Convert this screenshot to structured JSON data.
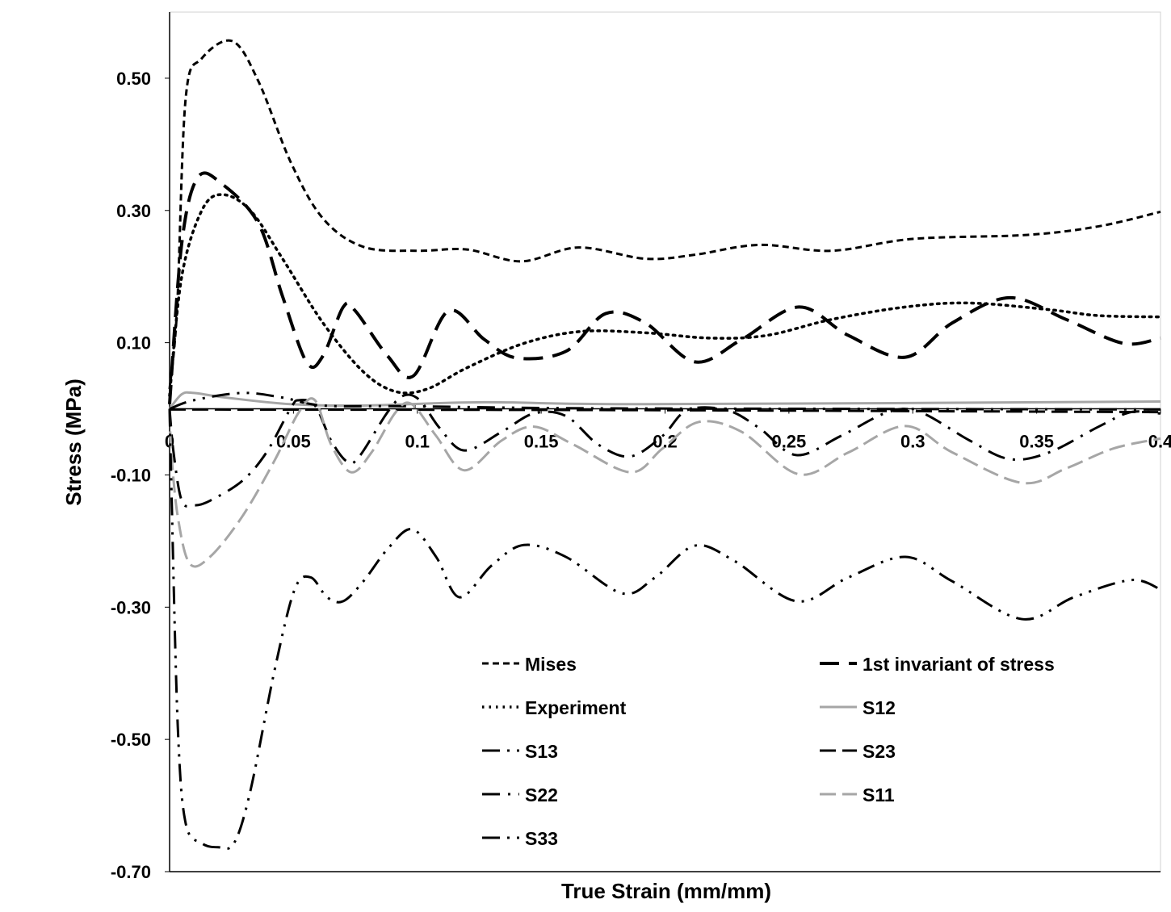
{
  "chart_data": {
    "type": "line",
    "title": "",
    "xlabel": "True Strain (mm/mm)",
    "ylabel": "Stress (MPa)",
    "xlim": [
      0,
      0.4
    ],
    "ylim": [
      -0.7,
      0.6
    ],
    "xticks": [
      0,
      0.05,
      0.1,
      0.15,
      0.2,
      0.25,
      0.3,
      0.35,
      0.4
    ],
    "xtick_labels": [
      "0",
      "0.05",
      "0.1",
      "0.15",
      "0.2",
      "0.25",
      "0.3",
      "0.35",
      "0.4"
    ],
    "yticks": [
      0.5,
      0.3,
      0.1,
      -0.1,
      -0.3,
      -0.5,
      -0.7
    ],
    "ytick_labels": [
      "0.50",
      "0.30",
      "0.10",
      "-0.10",
      "-0.30",
      "-0.50",
      "-0.70"
    ],
    "grid": false,
    "legend_placement": "bottom-right inside",
    "series": [
      {
        "name": "Mises",
        "color": "#000000",
        "style": "dashed",
        "points": [
          [
            0,
            0.03
          ],
          [
            0.003,
            0.15
          ],
          [
            0.0065,
            0.47
          ],
          [
            0.013,
            0.53
          ],
          [
            0.0254,
            0.556
          ],
          [
            0.0359,
            0.495
          ],
          [
            0.0489,
            0.373
          ],
          [
            0.0619,
            0.288
          ],
          [
            0.0782,
            0.245
          ],
          [
            0.0998,
            0.239
          ],
          [
            0.12,
            0.241
          ],
          [
            0.142,
            0.223
          ],
          [
            0.165,
            0.244
          ],
          [
            0.192,
            0.227
          ],
          [
            0.212,
            0.233
          ],
          [
            0.238,
            0.248
          ],
          [
            0.267,
            0.239
          ],
          [
            0.3,
            0.257
          ],
          [
            0.346,
            0.263
          ],
          [
            0.375,
            0.276
          ],
          [
            0.4,
            0.298
          ]
        ]
      },
      {
        "name": "1st invariant of stress",
        "color": "#000000",
        "style": "longdash",
        "points": [
          [
            0,
            0.007
          ],
          [
            0.0049,
            0.25
          ],
          [
            0.0114,
            0.35
          ],
          [
            0.0212,
            0.34
          ],
          [
            0.0359,
            0.28
          ],
          [
            0.0456,
            0.17
          ],
          [
            0.0554,
            0.07
          ],
          [
            0.0619,
            0.08
          ],
          [
            0.0701,
            0.154
          ],
          [
            0.075,
            0.148
          ],
          [
            0.088,
            0.08
          ],
          [
            0.0985,
            0.05
          ],
          [
            0.1125,
            0.148
          ],
          [
            0.127,
            0.105
          ],
          [
            0.14,
            0.077
          ],
          [
            0.16,
            0.087
          ],
          [
            0.176,
            0.144
          ],
          [
            0.192,
            0.13
          ],
          [
            0.212,
            0.071
          ],
          [
            0.231,
            0.105
          ],
          [
            0.254,
            0.154
          ],
          [
            0.274,
            0.111
          ],
          [
            0.297,
            0.078
          ],
          [
            0.316,
            0.13
          ],
          [
            0.339,
            0.168
          ],
          [
            0.362,
            0.135
          ],
          [
            0.385,
            0.099
          ],
          [
            0.4,
            0.107
          ]
        ]
      },
      {
        "name": "Experiment",
        "color": "#000000",
        "style": "dotted",
        "points": [
          [
            0,
            0.02
          ],
          [
            0.0049,
            0.2
          ],
          [
            0.013,
            0.3
          ],
          [
            0.0212,
            0.324
          ],
          [
            0.0326,
            0.3
          ],
          [
            0.0456,
            0.227
          ],
          [
            0.0619,
            0.13
          ],
          [
            0.0782,
            0.056
          ],
          [
            0.0913,
            0.026
          ],
          [
            0.104,
            0.03
          ],
          [
            0.12,
            0.062
          ],
          [
            0.143,
            0.099
          ],
          [
            0.166,
            0.117
          ],
          [
            0.192,
            0.115
          ],
          [
            0.218,
            0.107
          ],
          [
            0.241,
            0.111
          ],
          [
            0.267,
            0.135
          ],
          [
            0.297,
            0.154
          ],
          [
            0.323,
            0.16
          ],
          [
            0.355,
            0.15
          ],
          [
            0.375,
            0.141
          ],
          [
            0.4,
            0.139
          ]
        ]
      },
      {
        "name": "S12",
        "color": "#a6a6a6",
        "style": "solid",
        "points": [
          [
            0,
            0
          ],
          [
            0.0049,
            0.022
          ],
          [
            0.0098,
            0.024
          ],
          [
            0.0228,
            0.017
          ],
          [
            0.0489,
            0.007
          ],
          [
            0.0782,
            0.005
          ],
          [
            0.127,
            0.01
          ],
          [
            0.192,
            0.007
          ],
          [
            0.4,
            0.011
          ]
        ]
      },
      {
        "name": "S13",
        "color": "#000000",
        "style": "dashdotdot",
        "points": [
          [
            0,
            0
          ],
          [
            0.0098,
            0.013
          ],
          [
            0.0293,
            0.024
          ],
          [
            0.0456,
            0.017
          ],
          [
            0.0619,
            0.005
          ],
          [
            0.0945,
            0.004
          ],
          [
            0.16,
            0.001
          ],
          [
            0.258,
            0
          ],
          [
            0.4,
            -0.001
          ]
        ]
      },
      {
        "name": "S23",
        "color": "#000000",
        "style": "dash",
        "points": [
          [
            0,
            -0.001
          ],
          [
            0.192,
            -0.002
          ],
          [
            0.4,
            -0.005
          ]
        ]
      },
      {
        "name": "S22",
        "color": "#000000",
        "style": "dashdot",
        "points": [
          [
            0,
            0
          ],
          [
            0.0016,
            -0.066
          ],
          [
            0.0049,
            -0.139
          ],
          [
            0.0098,
            -0.146
          ],
          [
            0.0163,
            -0.139
          ],
          [
            0.0293,
            -0.109
          ],
          [
            0.0391,
            -0.066
          ],
          [
            0.0489,
            0.001
          ],
          [
            0.0522,
            0.013
          ],
          [
            0.0587,
            0.005
          ],
          [
            0.0652,
            -0.048
          ],
          [
            0.0717,
            -0.08
          ],
          [
            0.0766,
            -0.072
          ],
          [
            0.088,
            -0.005
          ],
          [
            0.0945,
            0.02
          ],
          [
            0.101,
            0.013
          ],
          [
            0.109,
            -0.029
          ],
          [
            0.119,
            -0.063
          ],
          [
            0.134,
            -0.035
          ],
          [
            0.147,
            -0.007
          ],
          [
            0.16,
            -0.011
          ],
          [
            0.173,
            -0.054
          ],
          [
            0.186,
            -0.072
          ],
          [
            0.199,
            -0.041
          ],
          [
            0.209,
            -0.002
          ],
          [
            0.225,
            -0.002
          ],
          [
            0.238,
            -0.029
          ],
          [
            0.253,
            -0.07
          ],
          [
            0.271,
            -0.041
          ],
          [
            0.29,
            -0.005
          ],
          [
            0.303,
            -0.005
          ],
          [
            0.323,
            -0.048
          ],
          [
            0.339,
            -0.076
          ],
          [
            0.355,
            -0.066
          ],
          [
            0.375,
            -0.027
          ],
          [
            0.388,
            -0.005
          ],
          [
            0.4,
            -0.007
          ]
        ]
      },
      {
        "name": "S11",
        "color": "#a6a6a6",
        "style": "dash",
        "points": [
          [
            0,
            0
          ],
          [
            0.0007,
            -0.066
          ],
          [
            0.0033,
            -0.163
          ],
          [
            0.0081,
            -0.234
          ],
          [
            0.0163,
            -0.224
          ],
          [
            0.0293,
            -0.163
          ],
          [
            0.0424,
            -0.078
          ],
          [
            0.0522,
            -0.005
          ],
          [
            0.0587,
            0.013
          ],
          [
            0.0652,
            -0.054
          ],
          [
            0.0733,
            -0.096
          ],
          [
            0.0815,
            -0.066
          ],
          [
            0.0913,
            -0.005
          ],
          [
            0.0978,
            0.007
          ],
          [
            0.1076,
            -0.041
          ],
          [
            0.119,
            -0.093
          ],
          [
            0.134,
            -0.048
          ],
          [
            0.147,
            -0.027
          ],
          [
            0.163,
            -0.054
          ],
          [
            0.186,
            -0.096
          ],
          [
            0.199,
            -0.06
          ],
          [
            0.2135,
            -0.02
          ],
          [
            0.231,
            -0.035
          ],
          [
            0.254,
            -0.099
          ],
          [
            0.274,
            -0.066
          ],
          [
            0.297,
            -0.026
          ],
          [
            0.316,
            -0.066
          ],
          [
            0.344,
            -0.112
          ],
          [
            0.362,
            -0.09
          ],
          [
            0.381,
            -0.06
          ],
          [
            0.4,
            -0.045
          ]
        ]
      },
      {
        "name": "S33",
        "color": "#000000",
        "style": "dashdotdot",
        "points": [
          [
            0,
            0
          ],
          [
            0.0007,
            -0.115
          ],
          [
            0.0033,
            -0.48
          ],
          [
            0.0065,
            -0.627
          ],
          [
            0.013,
            -0.657
          ],
          [
            0.0196,
            -0.663
          ],
          [
            0.026,
            -0.657
          ],
          [
            0.0326,
            -0.578
          ],
          [
            0.0424,
            -0.395
          ],
          [
            0.0505,
            -0.273
          ],
          [
            0.057,
            -0.255
          ],
          [
            0.0636,
            -0.285
          ],
          [
            0.0701,
            -0.291
          ],
          [
            0.0782,
            -0.261
          ],
          [
            0.088,
            -0.212
          ],
          [
            0.0978,
            -0.182
          ],
          [
            0.1076,
            -0.224
          ],
          [
            0.117,
            -0.285
          ],
          [
            0.13,
            -0.237
          ],
          [
            0.143,
            -0.206
          ],
          [
            0.16,
            -0.224
          ],
          [
            0.1826,
            -0.279
          ],
          [
            0.196,
            -0.255
          ],
          [
            0.212,
            -0.207
          ],
          [
            0.228,
            -0.23
          ],
          [
            0.253,
            -0.291
          ],
          [
            0.274,
            -0.255
          ],
          [
            0.297,
            -0.224
          ],
          [
            0.316,
            -0.261
          ],
          [
            0.344,
            -0.318
          ],
          [
            0.365,
            -0.285
          ],
          [
            0.388,
            -0.259
          ],
          [
            0.4,
            -0.273
          ]
        ]
      }
    ],
    "legend": [
      {
        "label": "Mises",
        "series": 0
      },
      {
        "label": "1st invariant of stress",
        "series": 1
      },
      {
        "label": "Experiment",
        "series": 2
      },
      {
        "label": "S12",
        "series": 3
      },
      {
        "label": "S13",
        "series": 4
      },
      {
        "label": "S23",
        "series": 5
      },
      {
        "label": "S22",
        "series": 6
      },
      {
        "label": "S11",
        "series": 7
      },
      {
        "label": "S33",
        "series": 8
      }
    ]
  }
}
